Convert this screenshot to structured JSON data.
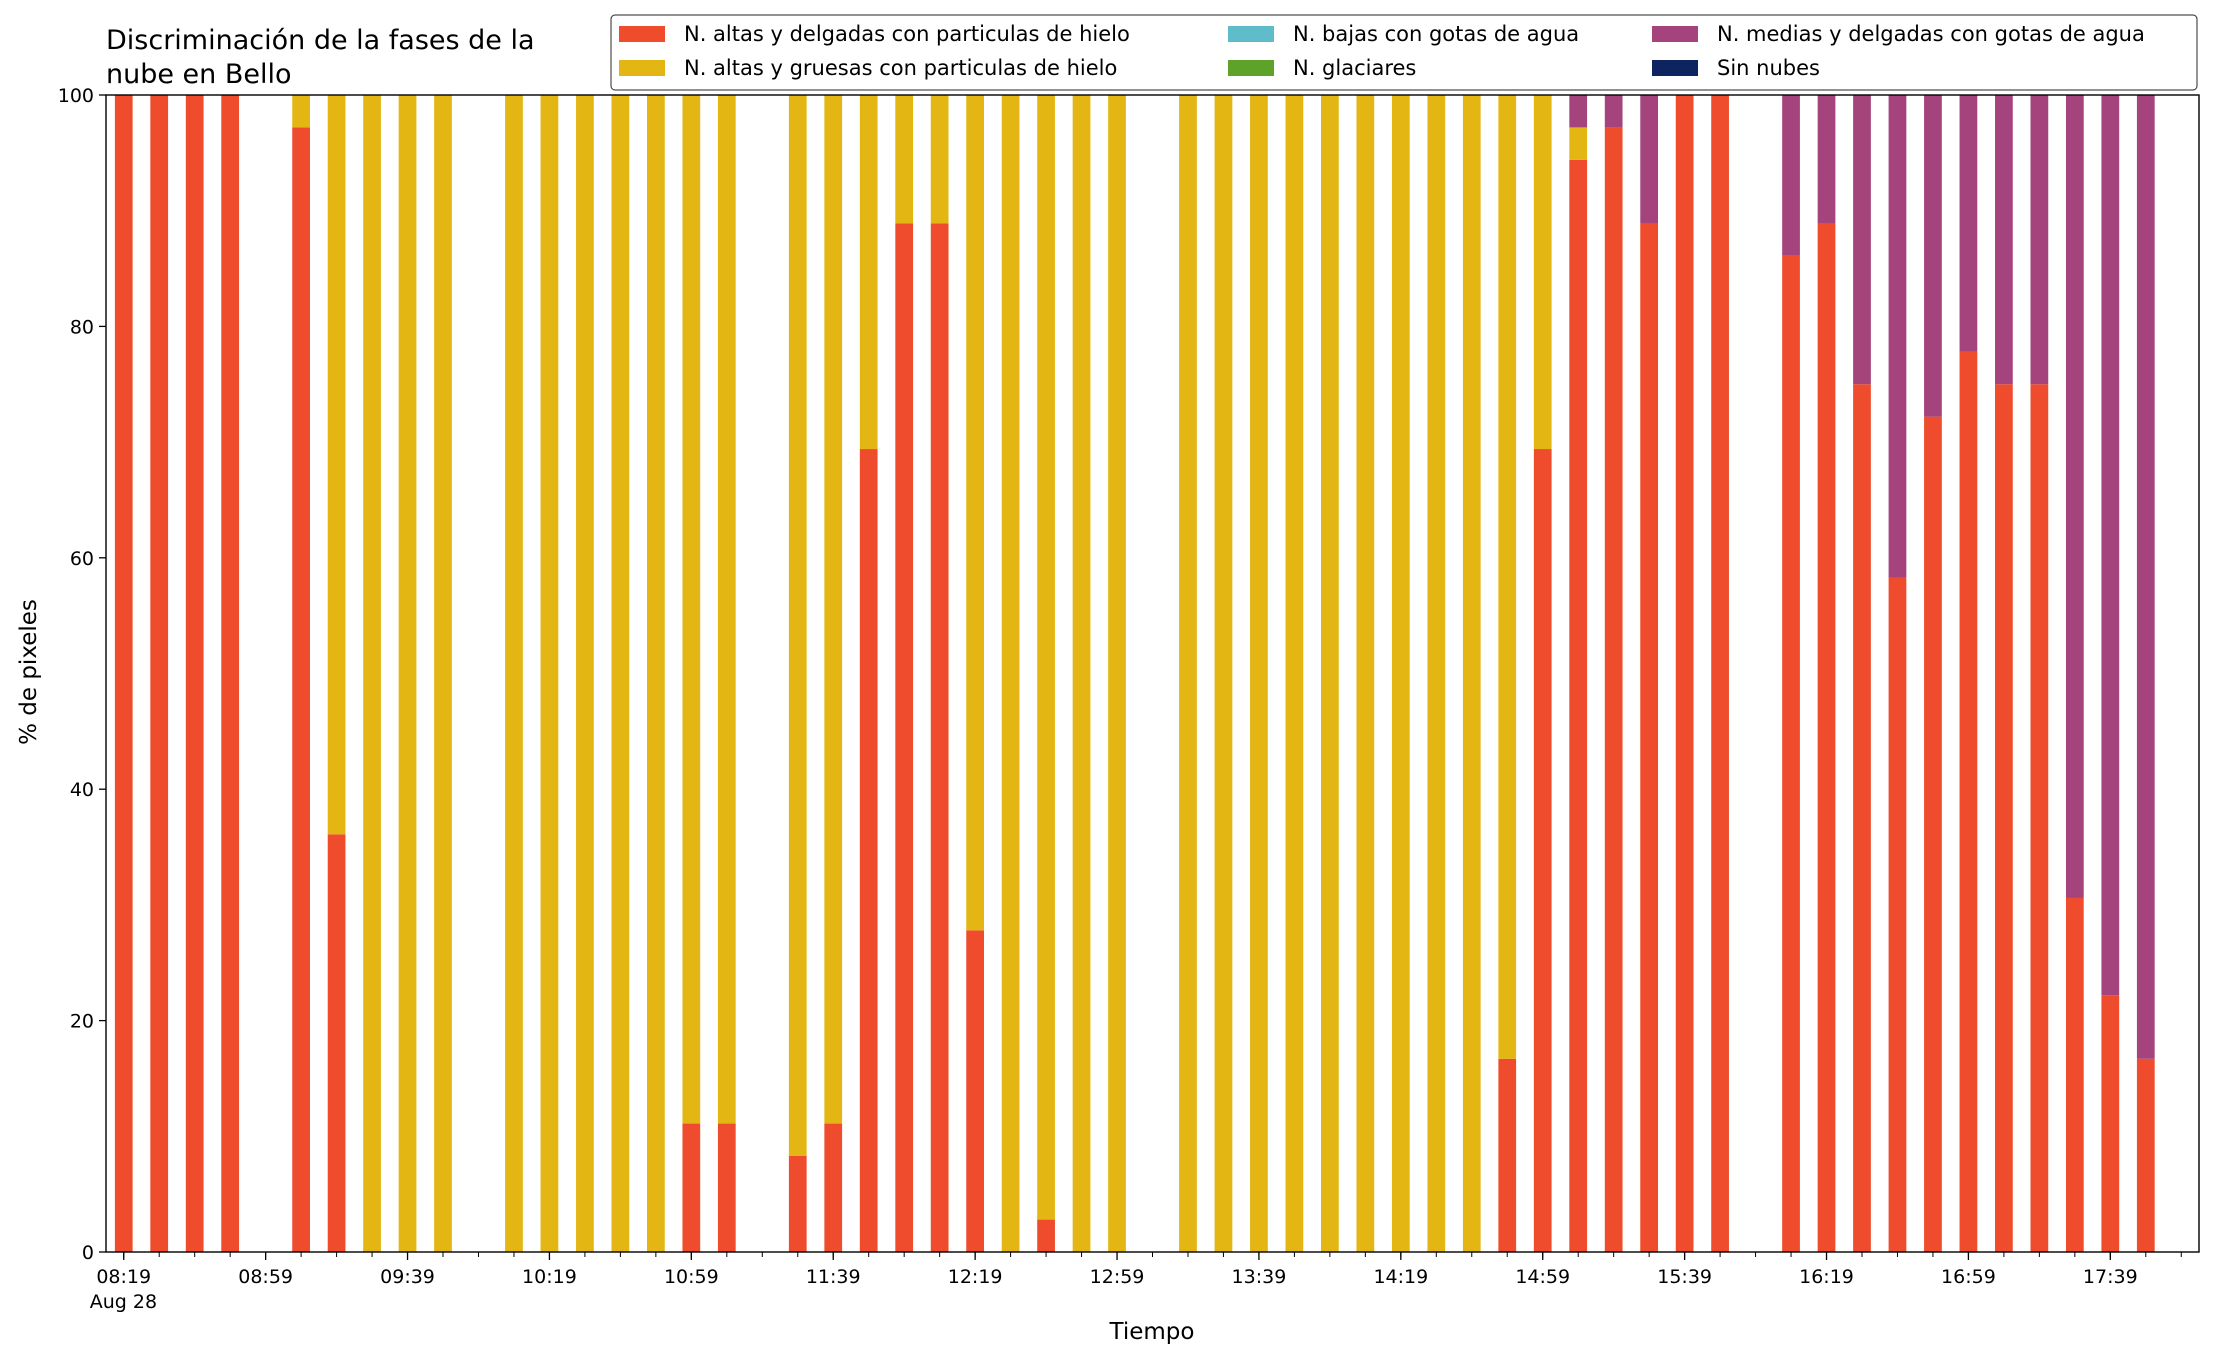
{
  "chart_data": {
    "type": "bar",
    "stacked": true,
    "title": "Discriminación de la fases de la nube en Bello",
    "title_lines": [
      "Discriminación de la fases de la",
      "nube en Bello"
    ],
    "xlabel": "Tiempo",
    "ylabel": "% de pixeles",
    "ylim": [
      0,
      100
    ],
    "yticks": [
      0,
      20,
      40,
      60,
      80,
      100
    ],
    "xlim_slots": [
      -0.5,
      58.5
    ],
    "xticks": [
      {
        "slot": 0,
        "label": "08:19",
        "sublabel": "Aug 28"
      },
      {
        "slot": 4,
        "label": "08:59"
      },
      {
        "slot": 8,
        "label": "09:39"
      },
      {
        "slot": 12,
        "label": "10:19"
      },
      {
        "slot": 16,
        "label": "10:59"
      },
      {
        "slot": 20,
        "label": "11:39"
      },
      {
        "slot": 24,
        "label": "12:19"
      },
      {
        "slot": 28,
        "label": "12:59"
      },
      {
        "slot": 32,
        "label": "13:39"
      },
      {
        "slot": 36,
        "label": "14:19"
      },
      {
        "slot": 40,
        "label": "14:59"
      },
      {
        "slot": 44,
        "label": "15:39"
      },
      {
        "slot": 48,
        "label": "16:19"
      },
      {
        "slot": 52,
        "label": "16:59"
      },
      {
        "slot": 56,
        "label": "17:39"
      }
    ],
    "legend_position": "top-right",
    "legend_columns": 3,
    "series": [
      {
        "name": "N. altas y delgadas con particulas de hielo",
        "color": "#ee4c2c"
      },
      {
        "name": "N. altas y gruesas con particulas de hielo",
        "color": "#e3b614"
      },
      {
        "name": "N. bajas con gotas de agua",
        "color": "#5fbcc9"
      },
      {
        "name": "N. glaciares",
        "color": "#5fa22a"
      },
      {
        "name": "N. medias y delgadas con gotas de agua",
        "color": "#a4437c"
      },
      {
        "name": "Sin nubes",
        "color": "#0e2460"
      }
    ],
    "bars": [
      {
        "slot": 0,
        "values": [
          100,
          0,
          0,
          0,
          0,
          0
        ]
      },
      {
        "slot": 1,
        "values": [
          100,
          0,
          0,
          0,
          0,
          0
        ]
      },
      {
        "slot": 2,
        "values": [
          100,
          0,
          0,
          0,
          0,
          0
        ]
      },
      {
        "slot": 3,
        "values": [
          100,
          0,
          0,
          0,
          0,
          0
        ]
      },
      {
        "slot": 5,
        "values": [
          97.2,
          2.8,
          0,
          0,
          0,
          0
        ]
      },
      {
        "slot": 6,
        "values": [
          36.1,
          63.9,
          0,
          0,
          0,
          0
        ]
      },
      {
        "slot": 7,
        "values": [
          0,
          100,
          0,
          0,
          0,
          0
        ]
      },
      {
        "slot": 8,
        "values": [
          0,
          100,
          0,
          0,
          0,
          0
        ]
      },
      {
        "slot": 9,
        "values": [
          0,
          100,
          0,
          0,
          0,
          0
        ]
      },
      {
        "slot": 11,
        "values": [
          0,
          100,
          0,
          0,
          0,
          0
        ]
      },
      {
        "slot": 12,
        "values": [
          0,
          100,
          0,
          0,
          0,
          0
        ]
      },
      {
        "slot": 13,
        "values": [
          0,
          100,
          0,
          0,
          0,
          0
        ]
      },
      {
        "slot": 14,
        "values": [
          0,
          100,
          0,
          0,
          0,
          0
        ]
      },
      {
        "slot": 15,
        "values": [
          0,
          100,
          0,
          0,
          0,
          0
        ]
      },
      {
        "slot": 16,
        "values": [
          11.1,
          88.9,
          0,
          0,
          0,
          0
        ]
      },
      {
        "slot": 17,
        "values": [
          11.1,
          88.9,
          0,
          0,
          0,
          0
        ]
      },
      {
        "slot": 19,
        "values": [
          8.3,
          91.7,
          0,
          0,
          0,
          0
        ]
      },
      {
        "slot": 20,
        "values": [
          11.1,
          88.9,
          0,
          0,
          0,
          0
        ]
      },
      {
        "slot": 21,
        "values": [
          69.4,
          30.6,
          0,
          0,
          0,
          0
        ]
      },
      {
        "slot": 22,
        "values": [
          88.9,
          11.1,
          0,
          0,
          0,
          0
        ]
      },
      {
        "slot": 23,
        "values": [
          88.9,
          11.1,
          0,
          0,
          0,
          0
        ]
      },
      {
        "slot": 24,
        "values": [
          27.8,
          72.2,
          0,
          0,
          0,
          0
        ]
      },
      {
        "slot": 25,
        "values": [
          0,
          100,
          0,
          0,
          0,
          0
        ]
      },
      {
        "slot": 26,
        "values": [
          2.8,
          97.2,
          0,
          0,
          0,
          0
        ]
      },
      {
        "slot": 27,
        "values": [
          0,
          100,
          0,
          0,
          0,
          0
        ]
      },
      {
        "slot": 28,
        "values": [
          0,
          100,
          0,
          0,
          0,
          0
        ]
      },
      {
        "slot": 30,
        "values": [
          0,
          100,
          0,
          0,
          0,
          0
        ]
      },
      {
        "slot": 31,
        "values": [
          0,
          100,
          0,
          0,
          0,
          0
        ]
      },
      {
        "slot": 32,
        "values": [
          0,
          100,
          0,
          0,
          0,
          0
        ]
      },
      {
        "slot": 33,
        "values": [
          0,
          100,
          0,
          0,
          0,
          0
        ]
      },
      {
        "slot": 34,
        "values": [
          0,
          100,
          0,
          0,
          0,
          0
        ]
      },
      {
        "slot": 35,
        "values": [
          0,
          100,
          0,
          0,
          0,
          0
        ]
      },
      {
        "slot": 36,
        "values": [
          0,
          100,
          0,
          0,
          0,
          0
        ]
      },
      {
        "slot": 37,
        "values": [
          0,
          100,
          0,
          0,
          0,
          0
        ]
      },
      {
        "slot": 38,
        "values": [
          0,
          100,
          0,
          0,
          0,
          0
        ]
      },
      {
        "slot": 39,
        "values": [
          16.7,
          83.3,
          0,
          0,
          0,
          0
        ]
      },
      {
        "slot": 40,
        "values": [
          69.4,
          30.6,
          0,
          0,
          0,
          0
        ]
      },
      {
        "slot": 41,
        "values": [
          94.4,
          2.8,
          0,
          0,
          2.8,
          0
        ]
      },
      {
        "slot": 42,
        "values": [
          97.2,
          0,
          0,
          0,
          2.8,
          0
        ]
      },
      {
        "slot": 43,
        "values": [
          88.9,
          0,
          0,
          0,
          11.1,
          0
        ]
      },
      {
        "slot": 44,
        "values": [
          100,
          0,
          0,
          0,
          0,
          0
        ]
      },
      {
        "slot": 45,
        "values": [
          100,
          0,
          0,
          0,
          0,
          0
        ]
      },
      {
        "slot": 47,
        "values": [
          86.1,
          0,
          0,
          0,
          13.9,
          0
        ]
      },
      {
        "slot": 48,
        "values": [
          88.9,
          0,
          0,
          0,
          11.1,
          0
        ]
      },
      {
        "slot": 49,
        "values": [
          75.0,
          0,
          0,
          0,
          25.0,
          0
        ]
      },
      {
        "slot": 50,
        "values": [
          58.3,
          0,
          0,
          0,
          41.7,
          0
        ]
      },
      {
        "slot": 51,
        "values": [
          72.2,
          0,
          0,
          0,
          27.8,
          0
        ]
      },
      {
        "slot": 52,
        "values": [
          77.8,
          0,
          0,
          0,
          22.2,
          0
        ]
      },
      {
        "slot": 53,
        "values": [
          75.0,
          0,
          0,
          0,
          25.0,
          0
        ]
      },
      {
        "slot": 54,
        "values": [
          75.0,
          0,
          0,
          0,
          25.0,
          0
        ]
      },
      {
        "slot": 55,
        "values": [
          30.6,
          0,
          0,
          0,
          69.4,
          0
        ]
      },
      {
        "slot": 56,
        "values": [
          22.2,
          0,
          0,
          0,
          77.8,
          0
        ]
      },
      {
        "slot": 57,
        "values": [
          16.7,
          0,
          0,
          0,
          83.3,
          0
        ]
      }
    ]
  }
}
